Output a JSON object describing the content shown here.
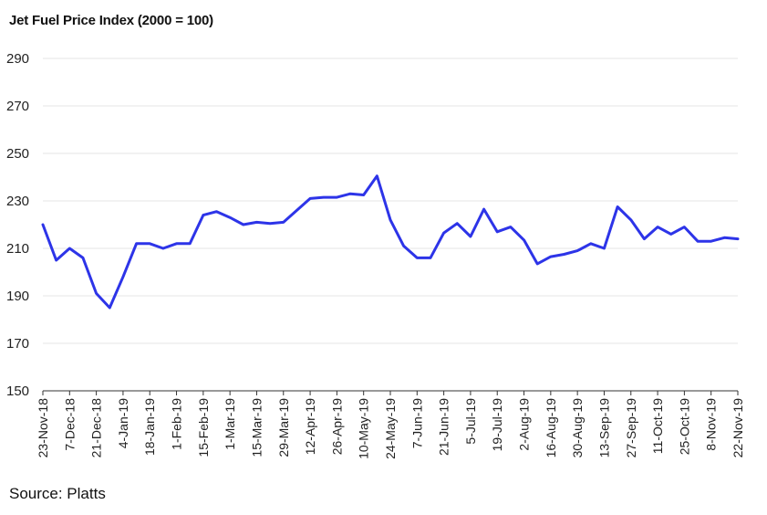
{
  "chart_data": {
    "type": "line",
    "title": "Jet Fuel Price Index (2000 = 100)",
    "source": "Source: Platts",
    "xlabel": "",
    "ylabel": "",
    "ylim": [
      150,
      290
    ],
    "yticks": [
      150,
      170,
      190,
      210,
      230,
      250,
      270,
      290
    ],
    "grid": true,
    "color": "#2d34e8",
    "x": [
      "23-Nov-18",
      "30-Nov-18",
      "7-Dec-18",
      "14-Dec-18",
      "21-Dec-18",
      "28-Dec-18",
      "4-Jan-19",
      "11-Jan-19",
      "18-Jan-19",
      "25-Jan-19",
      "1-Feb-19",
      "8-Feb-19",
      "15-Feb-19",
      "22-Feb-19",
      "1-Mar-19",
      "8-Mar-19",
      "15-Mar-19",
      "22-Mar-19",
      "29-Mar-19",
      "5-Apr-19",
      "12-Apr-19",
      "19-Apr-19",
      "26-Apr-19",
      "3-May-19",
      "10-May-19",
      "17-May-19",
      "24-May-19",
      "31-May-19",
      "7-Jun-19",
      "14-Jun-19",
      "21-Jun-19",
      "28-Jun-19",
      "5-Jul-19",
      "12-Jul-19",
      "19-Jul-19",
      "26-Jul-19",
      "2-Aug-19",
      "9-Aug-19",
      "16-Aug-19",
      "23-Aug-19",
      "30-Aug-19",
      "6-Sep-19",
      "13-Sep-19",
      "20-Sep-19",
      "27-Sep-19",
      "4-Oct-19",
      "11-Oct-19",
      "18-Oct-19",
      "25-Oct-19",
      "1-Nov-19",
      "8-Nov-19",
      "15-Nov-19",
      "22-Nov-19"
    ],
    "xtick_labels": [
      "23-Nov-18",
      "7-Dec-18",
      "21-Dec-18",
      "4-Jan-19",
      "18-Jan-19",
      "1-Feb-19",
      "15-Feb-19",
      "1-Mar-19",
      "15-Mar-19",
      "29-Mar-19",
      "12-Apr-19",
      "26-Apr-19",
      "10-May-19",
      "24-May-19",
      "7-Jun-19",
      "21-Jun-19",
      "5-Jul-19",
      "19-Jul-19",
      "2-Aug-19",
      "16-Aug-19",
      "30-Aug-19",
      "13-Sep-19",
      "27-Sep-19",
      "11-Oct-19",
      "25-Oct-19",
      "8-Nov-19",
      "22-Nov-19"
    ],
    "series": [
      {
        "values": [
          220,
          205,
          210,
          206,
          191,
          185,
          198,
          212,
          212,
          210,
          212,
          212,
          224,
          225.5,
          223,
          220,
          221,
          220.5,
          221,
          226,
          231,
          231.5,
          231.5,
          233,
          232.5,
          240.5,
          222,
          211,
          206,
          206,
          216.5,
          220.5,
          215,
          226.5,
          217,
          219,
          213.5,
          203.5,
          206.5,
          207.5,
          209,
          212,
          210,
          227.5,
          222,
          214,
          219,
          216,
          219,
          213,
          213,
          214.5,
          214
        ]
      }
    ]
  }
}
